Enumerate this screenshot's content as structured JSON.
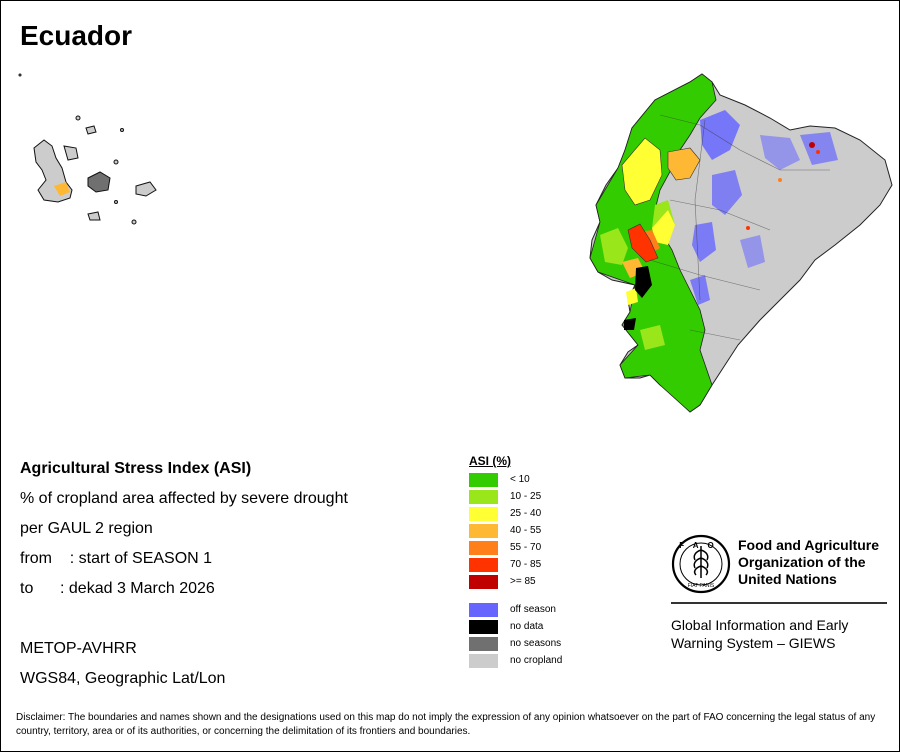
{
  "map": {
    "title": "Ecuador",
    "asi_heading": "Agricultural Stress Index (ASI)",
    "description_1": "% of cropland area affected by severe drought",
    "description_2": "per GAUL 2 region",
    "from_line": "from    : start of SEASON 1",
    "to_line": "to      : dekad 3 March 2026",
    "sensor": "METOP-AVHRR",
    "projection": "WGS84, Geographic Lat/Lon"
  },
  "legend": {
    "title": "ASI (%)",
    "classes": [
      {
        "label": "< 10",
        "color": "#33cc00"
      },
      {
        "label": "10 - 25",
        "color": "#99e61a"
      },
      {
        "label": "25 - 40",
        "color": "#ffff33"
      },
      {
        "label": "40 - 55",
        "color": "#ffb833"
      },
      {
        "label": "55 - 70",
        "color": "#ff7f1a"
      },
      {
        "label": "70 - 85",
        "color": "#ff3300"
      },
      {
        "label": ">= 85",
        "color": "#c00000"
      }
    ],
    "other": [
      {
        "label": "off season",
        "color": "#6666ff"
      },
      {
        "label": "no data",
        "color": "#000000"
      },
      {
        "label": "no seasons",
        "color": "#707070"
      },
      {
        "label": "no cropland",
        "color": "#cccccc"
      }
    ]
  },
  "organization": {
    "logo_letters": "FAO",
    "logo_motto": "FIAT PANIS",
    "name_line_1": "Food and Agriculture",
    "name_line_2": "Organization of the",
    "name_line_3": "United Nations",
    "system_line_1": "Global Information and Early",
    "system_line_2": "Warning System – GIEWS"
  },
  "disclaimer": "Disclaimer: The boundaries and names shown and the designations used on this map do not imply the expression of any opinion whatsoever on the part of FAO concerning the legal status of any country, territory, area or of its authorities, or concerning the delimitation of its frontiers and boundaries."
}
